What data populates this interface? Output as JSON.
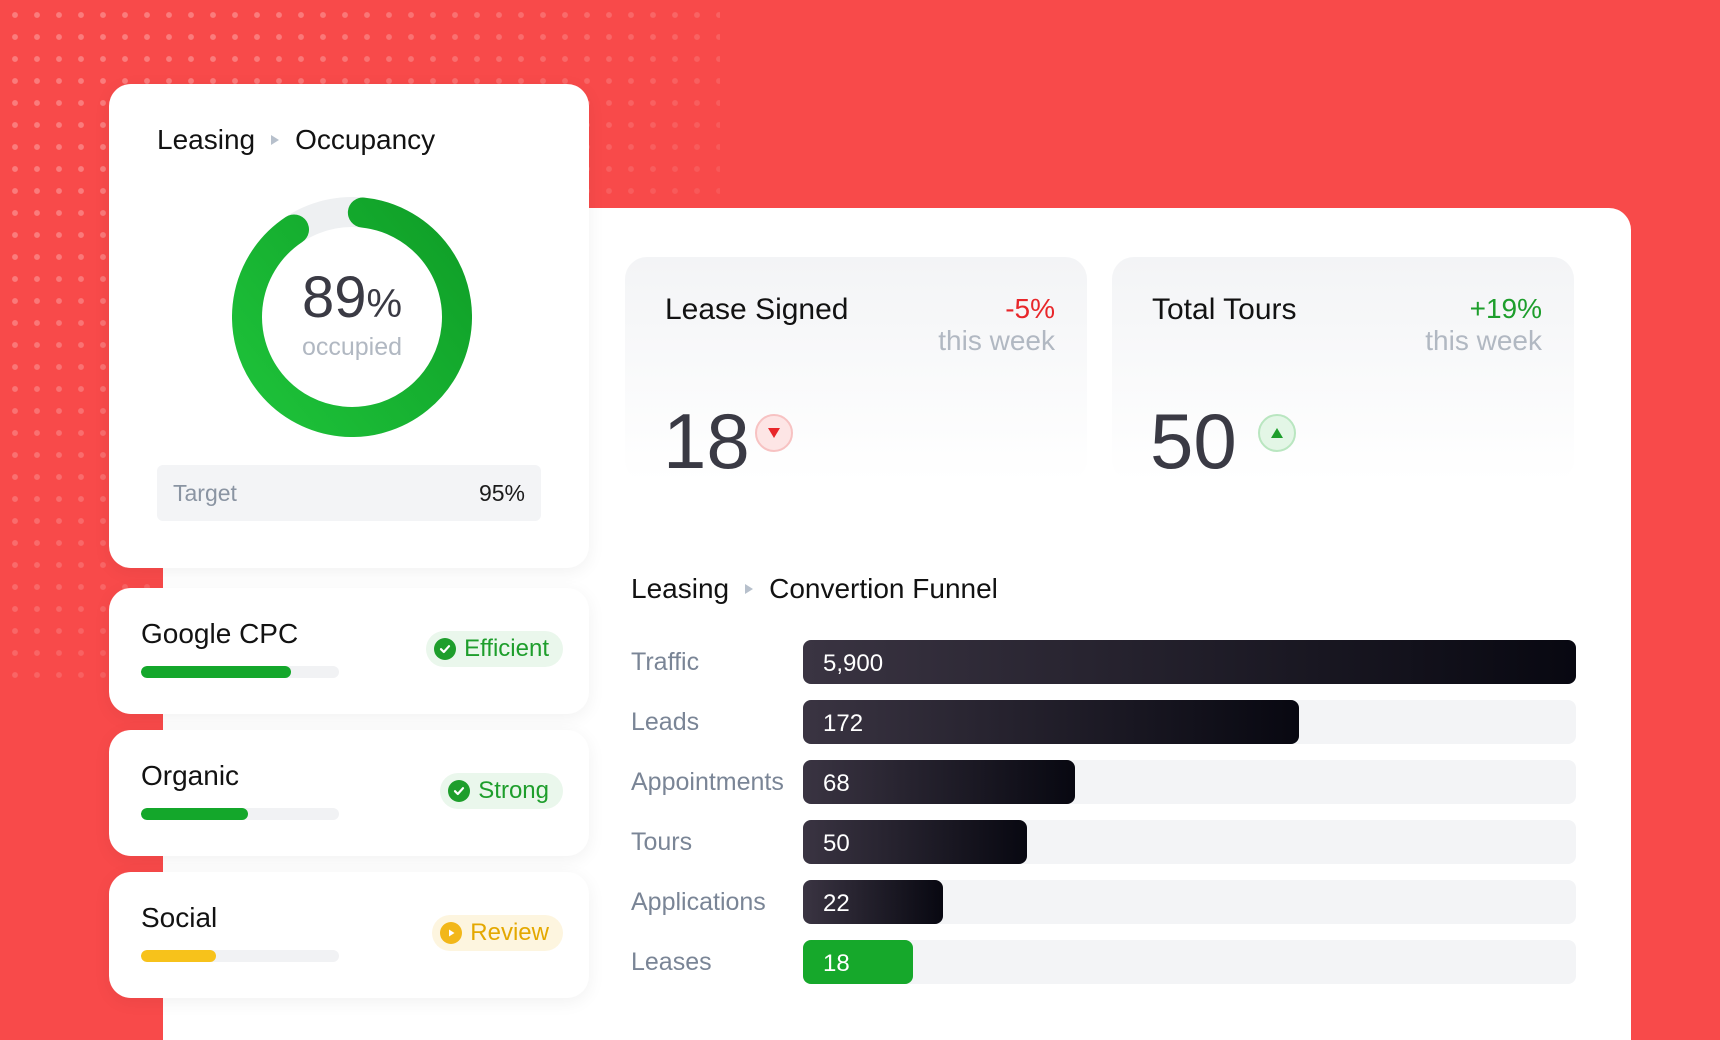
{
  "occupancy": {
    "breadcrumb": [
      "Leasing",
      "Occupancy"
    ],
    "percent": 89,
    "percent_value": "89",
    "percent_unit": "%",
    "sub_label": "occupied",
    "target_label": "Target",
    "target_value": "95%",
    "colors": {
      "arc": "#15a82c",
      "track": "#eef0f2"
    }
  },
  "channels": [
    {
      "name": "Google CPC",
      "level": 0.76,
      "bar_color": "#14a72b",
      "badge": "Efficient",
      "badge_tone": "green",
      "badge_icon": "check-circle-icon"
    },
    {
      "name": "Organic",
      "level": 0.54,
      "bar_color": "#14a72b",
      "badge": "Strong",
      "badge_tone": "green",
      "badge_icon": "check-circle-icon"
    },
    {
      "name": "Social",
      "level": 0.38,
      "bar_color": "#f7c21b",
      "badge": "Review",
      "badge_tone": "yellow",
      "badge_icon": "play-circle-icon"
    }
  ],
  "kpis": [
    {
      "title": "Lease Signed",
      "delta": "-5%",
      "period": "this week",
      "value": "18",
      "trend": "down",
      "delta_color": "#e8262a"
    },
    {
      "title": "Total Tours",
      "delta": "+19%",
      "period": "this week",
      "value": "50",
      "trend": "up",
      "delta_color": "#1e9e2c"
    }
  ],
  "funnel": {
    "breadcrumb": [
      "Leasing",
      "Convertion Funnel"
    ],
    "rows": [
      {
        "label": "Traffic",
        "value": "5,900",
        "fill": 1.0,
        "tone": "dark"
      },
      {
        "label": "Leads",
        "value": "172",
        "fill": 0.642,
        "tone": "dark"
      },
      {
        "label": "Appointments",
        "value": "68",
        "fill": 0.352,
        "tone": "dark"
      },
      {
        "label": "Tours",
        "value": "50",
        "fill": 0.29,
        "tone": "dark"
      },
      {
        "label": "Applications",
        "value": "22",
        "fill": 0.181,
        "tone": "dark"
      },
      {
        "label": "Leases",
        "value": "18",
        "fill": 0.142,
        "tone": "green"
      }
    ]
  }
}
